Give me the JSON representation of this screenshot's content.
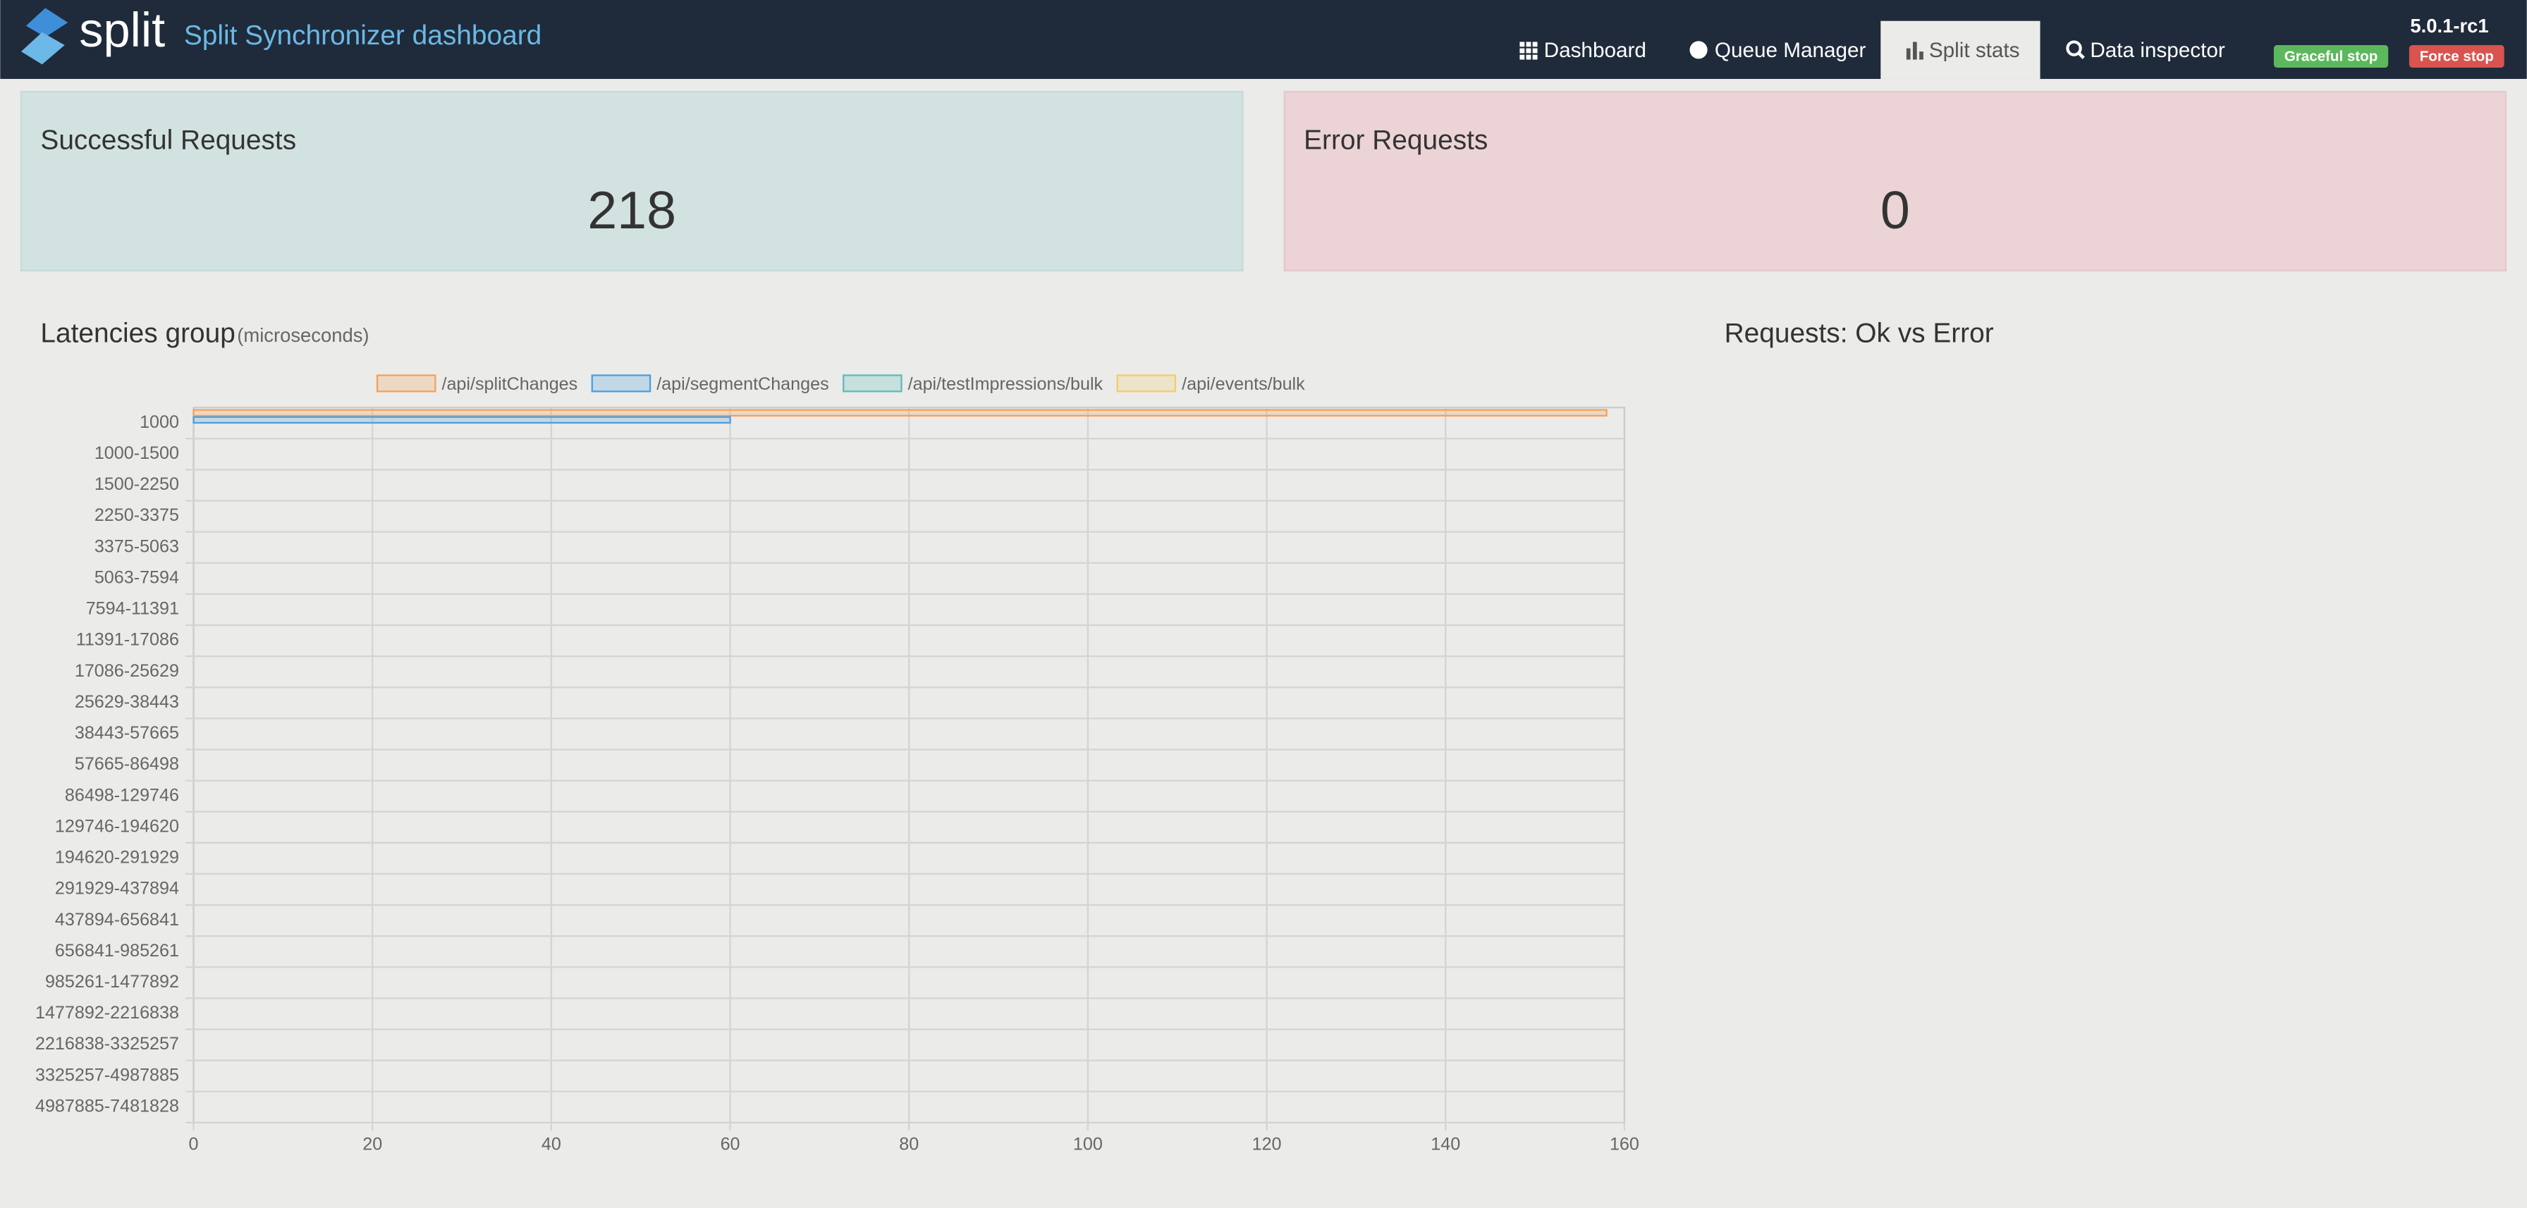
{
  "header": {
    "brand": "split",
    "title": "Split Synchronizer dashboard",
    "nav": [
      "Dashboard",
      "Queue Manager",
      "Split stats",
      "Data inspector"
    ],
    "version": "5.0.1-rc1",
    "buttons": [
      "Graceful stop",
      "Force stop"
    ]
  },
  "cards": [
    {
      "title": "Successful Requests",
      "value": 218
    },
    {
      "title": "Error Requests",
      "value": 0
    }
  ],
  "chart_data": {
    "type": "bar",
    "orientation": "horizontal",
    "title": "Latencies group",
    "subtitle": "(microseconds)",
    "categories": [
      "1000",
      "1000-1500",
      "1500-2250",
      "2250-3375",
      "3375-5063",
      "5063-7594",
      "7594-11391",
      "11391-17086",
      "17086-25629",
      "25629-38443",
      "38443-57665",
      "57665-86498",
      "86498-129746",
      "129746-194620",
      "194620-291929",
      "291929-437894",
      "437894-656841",
      "656841-985261",
      "985261-1477892",
      "1477892-2216838",
      "2216838-3325257",
      "3325257-4987885",
      "4987885-7481828"
    ],
    "series": [
      {
        "name": "/api/splitChanges",
        "color": "#f5a05a",
        "values": [
          158,
          0,
          0,
          0,
          0,
          0,
          0,
          0,
          0,
          0,
          0,
          0,
          0,
          0,
          0,
          0,
          0,
          0,
          0,
          0,
          0,
          0,
          0
        ]
      },
      {
        "name": "/api/segmentChanges",
        "color": "#4a9fe0",
        "values": [
          60,
          0,
          0,
          0,
          0,
          0,
          0,
          0,
          0,
          0,
          0,
          0,
          0,
          0,
          0,
          0,
          0,
          0,
          0,
          0,
          0,
          0,
          0
        ]
      },
      {
        "name": "/api/testImpressions/bulk",
        "color": "#5cbcbc",
        "values": [
          0,
          0,
          0,
          0,
          0,
          0,
          0,
          0,
          0,
          0,
          0,
          0,
          0,
          0,
          0,
          0,
          0,
          0,
          0,
          0,
          0,
          0,
          0
        ]
      },
      {
        "name": "/api/events/bulk",
        "color": "#f5cd66",
        "values": [
          0,
          0,
          0,
          0,
          0,
          0,
          0,
          0,
          0,
          0,
          0,
          0,
          0,
          0,
          0,
          0,
          0,
          0,
          0,
          0,
          0,
          0,
          0
        ]
      }
    ],
    "xlim": [
      0,
      160
    ],
    "xticks": [
      0,
      20,
      40,
      60,
      80,
      100,
      120,
      140,
      160
    ],
    "grid": true
  },
  "pie_title": "Requests: Ok vs Error"
}
